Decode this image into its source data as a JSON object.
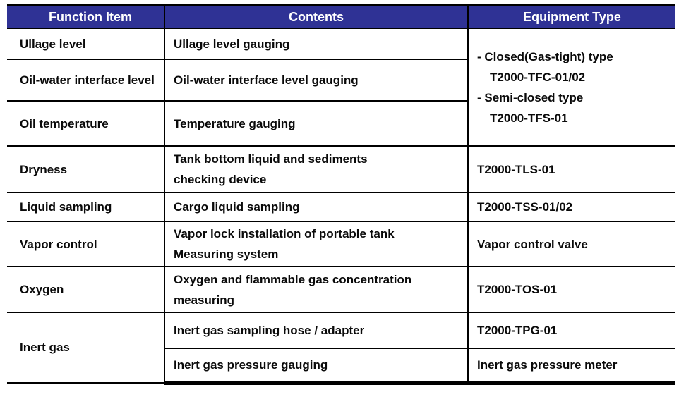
{
  "colors": {
    "header_bg": "#2F3295",
    "header_text": "#FFFFFF",
    "body_text": "#0A0A0A",
    "border": "#000000"
  },
  "header": {
    "function_item": "Function Item",
    "contents": "Contents",
    "equipment_type": "Equipment Type"
  },
  "rows": {
    "r1": {
      "function": "Ullage level",
      "contents": "Ullage level gauging"
    },
    "r2": {
      "function": "Oil-water interface level",
      "contents": "Oil-water interface level gauging"
    },
    "r3": {
      "function": "Oil temperature",
      "contents": "Temperature gauging"
    },
    "r1to3_equipment": {
      "line1": "- Closed(Gas-tight) type",
      "line2": "T2000-TFC-01/02",
      "line3": "- Semi-closed type",
      "line4": "T2000-TFS-01"
    },
    "r4": {
      "function": "Dryness",
      "contents_line1": "Tank bottom liquid and sediments",
      "contents_line2": "checking device",
      "equipment": "T2000-TLS-01"
    },
    "r5": {
      "function": "Liquid sampling",
      "contents": "Cargo liquid sampling",
      "equipment": "T2000-TSS-01/02"
    },
    "r6": {
      "function": "Vapor control",
      "contents_line1": "Vapor lock installation of portable tank",
      "contents_line2": "Measuring system",
      "equipment": "Vapor control valve"
    },
    "r7": {
      "function": "Oxygen",
      "contents_line1": "Oxygen and flammable gas concentration",
      "contents_line2": "measuring",
      "equipment": "T2000-TOS-01"
    },
    "r8": {
      "function": "Inert gas",
      "contents": "Inert gas sampling hose / adapter",
      "equipment": "T2000-TPG-01"
    },
    "r9": {
      "contents": "Inert gas pressure gauging",
      "equipment": "Inert gas pressure meter"
    }
  }
}
